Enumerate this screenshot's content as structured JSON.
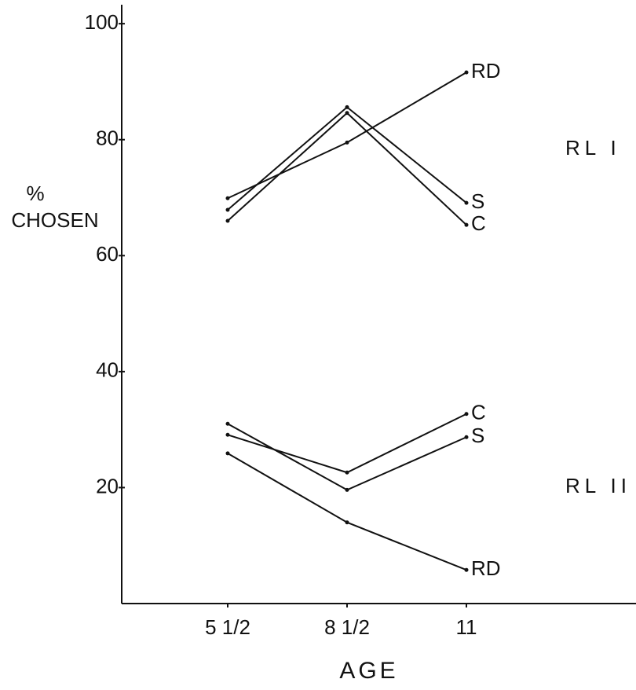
{
  "chart_data": {
    "type": "line",
    "x_label": "AGE",
    "y_label_unit": "%",
    "y_label": "CHOSEN",
    "categories": [
      "5 1/2",
      "8 1/2",
      "11"
    ],
    "ylim": [
      0,
      103
    ],
    "yticks": [
      20,
      40,
      60,
      80,
      100
    ],
    "color": "#111111",
    "groups": [
      {
        "label": "RL I",
        "series": [
          {
            "name": "RD",
            "values": [
              69.9,
              79.5,
              91.6
            ]
          },
          {
            "name": "S",
            "values": [
              67.9,
              85.6,
              69.1
            ]
          },
          {
            "name": "C",
            "values": [
              66.0,
              84.6,
              65.3
            ]
          }
        ]
      },
      {
        "label": "RL II",
        "series": [
          {
            "name": "C",
            "values": [
              29.1,
              22.6,
              32.7
            ]
          },
          {
            "name": "S",
            "values": [
              31.0,
              19.6,
              28.7
            ]
          },
          {
            "name": "RD",
            "values": [
              25.9,
              14.0,
              5.8
            ]
          }
        ]
      }
    ]
  }
}
